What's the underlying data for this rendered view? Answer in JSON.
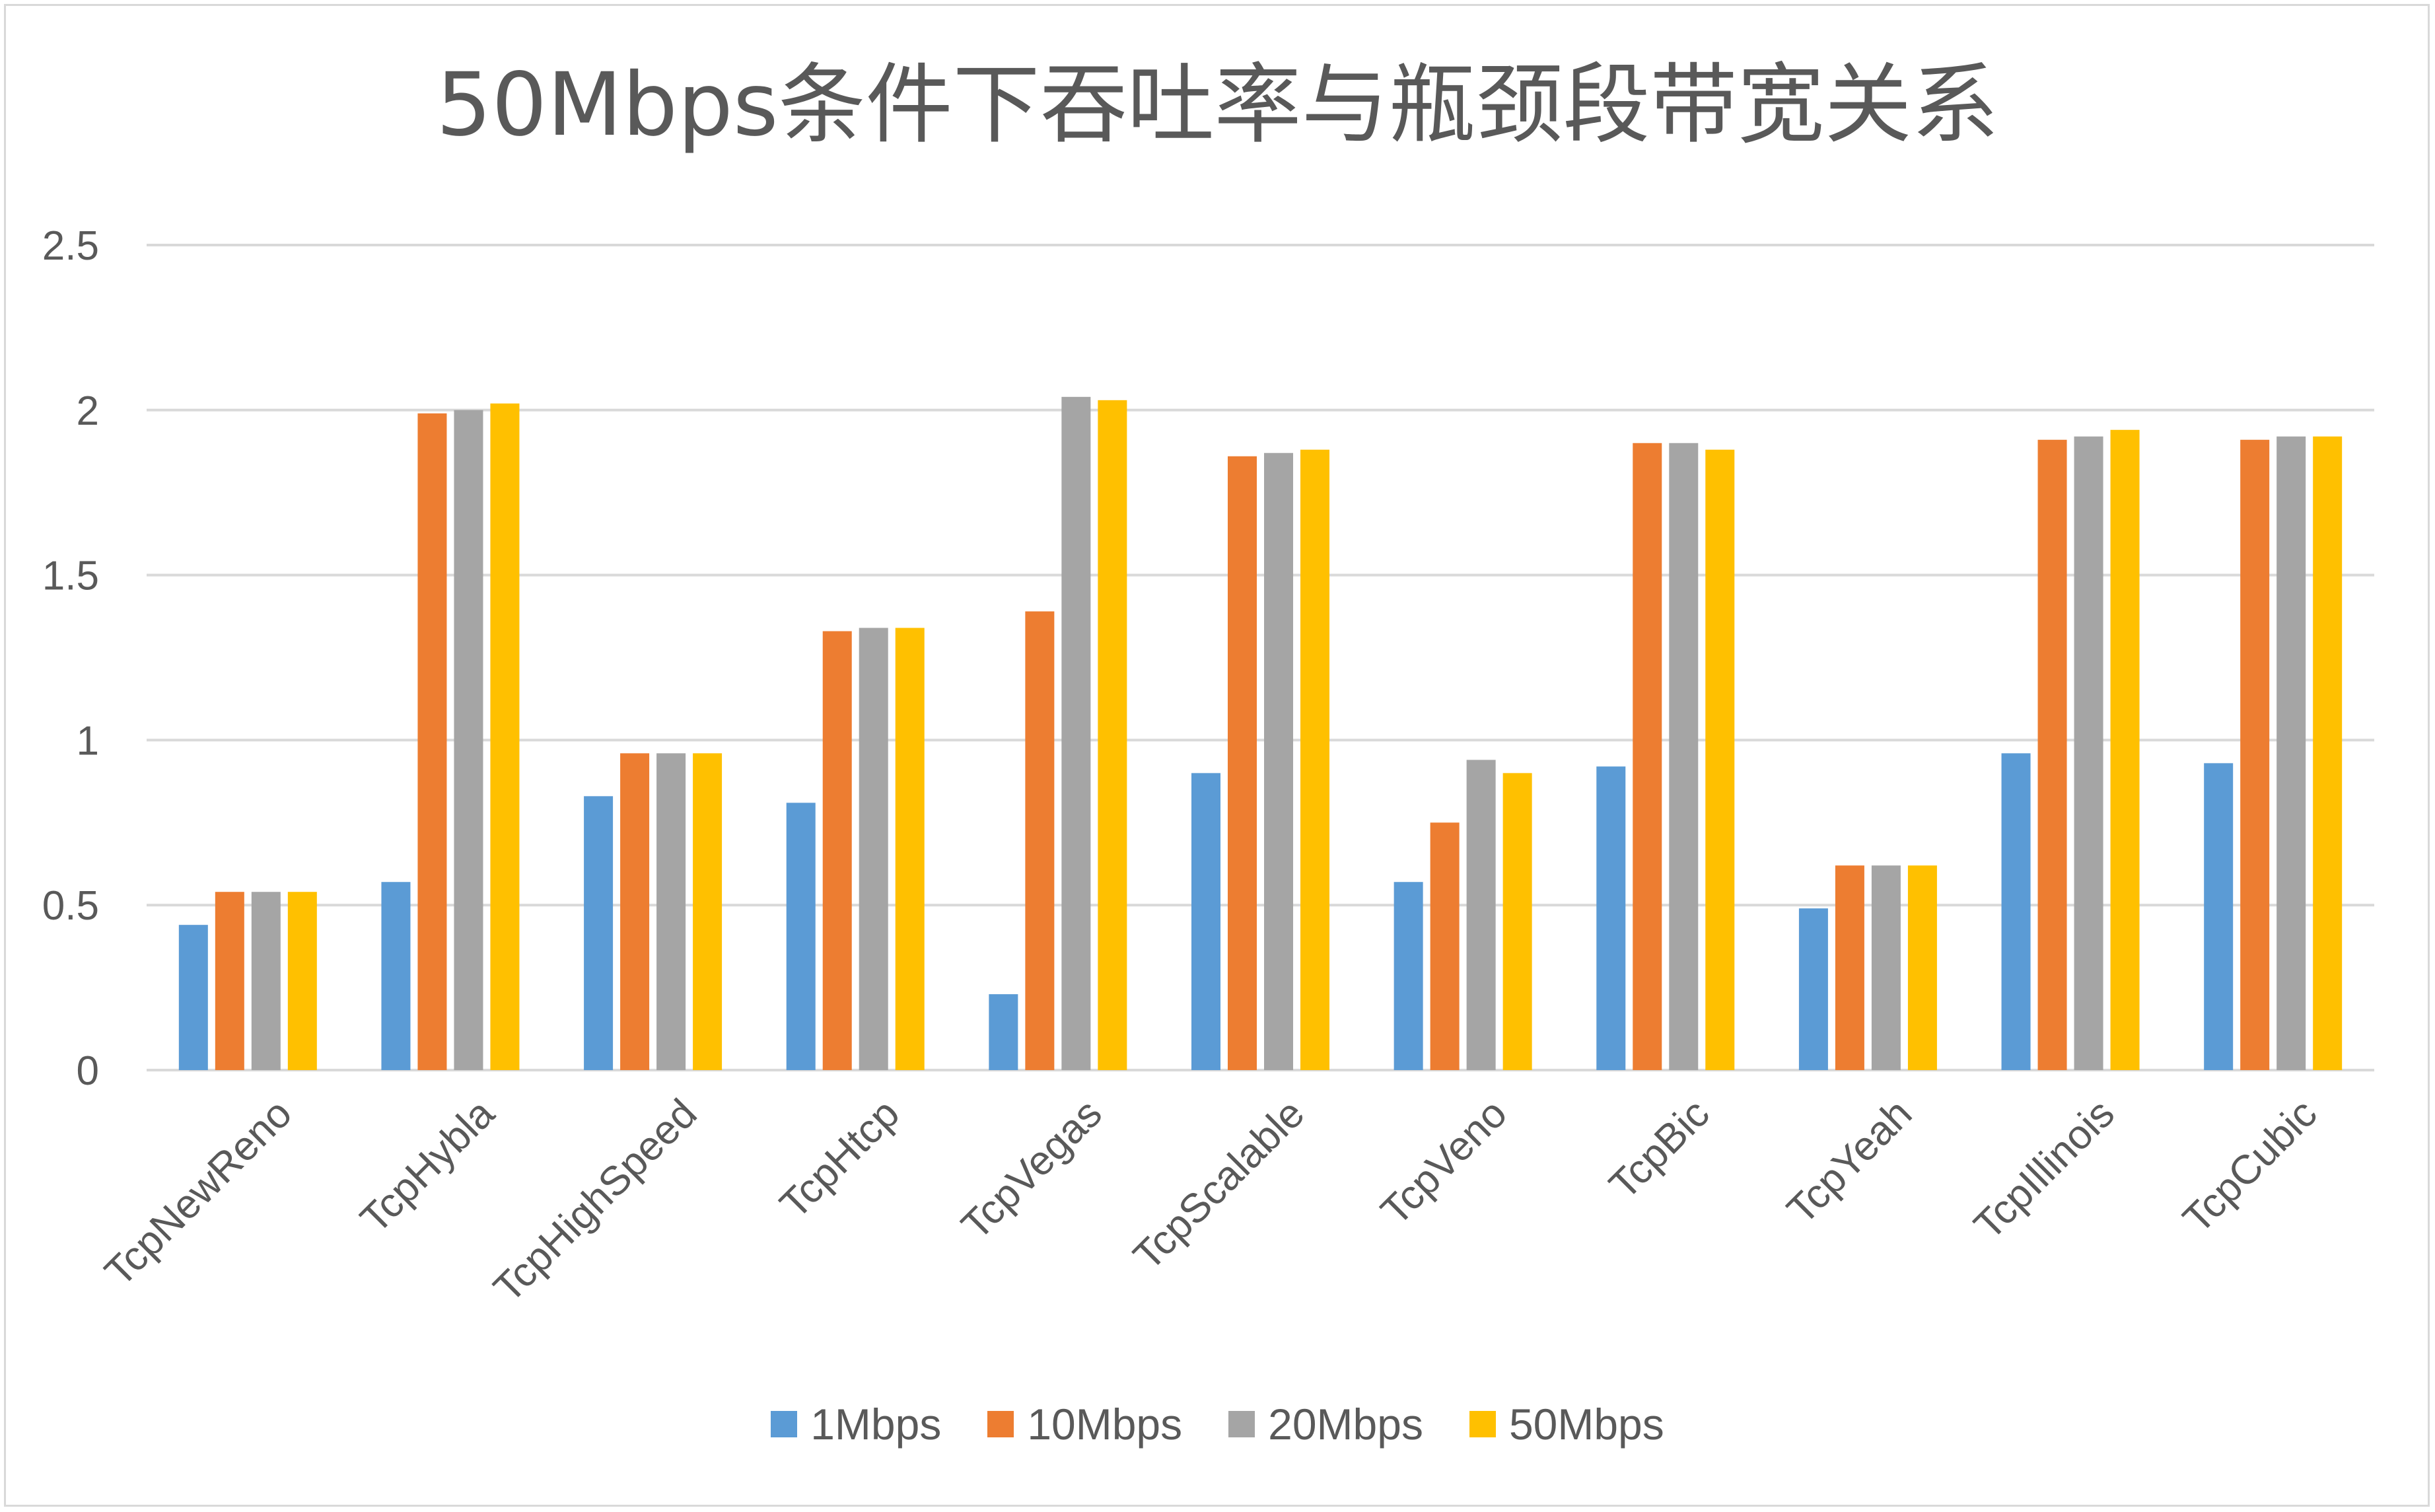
{
  "chart_data": {
    "type": "bar",
    "title": "50Mbps条件下吞吐率与瓶颈段带宽关系",
    "categories": [
      "TcpNewReno",
      "TcpHybla",
      "TcpHighSpeed",
      "TcpHtcp",
      "TcpVegas",
      "TcpScalable",
      "TcpVeno",
      "TcpBic",
      "TcpYeah",
      "TcpIllinois",
      "TcpCubic"
    ],
    "series": [
      {
        "name": "1Mbps",
        "color": "#5b9bd5",
        "values": [
          0.44,
          0.57,
          0.83,
          0.81,
          0.23,
          0.9,
          0.57,
          0.92,
          0.49,
          0.96,
          0.93
        ]
      },
      {
        "name": "10Mbps",
        "color": "#ed7d31",
        "values": [
          0.54,
          1.99,
          0.96,
          1.33,
          1.39,
          1.86,
          0.75,
          1.9,
          0.62,
          1.91,
          1.91
        ]
      },
      {
        "name": "20Mbps",
        "color": "#a5a5a5",
        "values": [
          0.54,
          2.0,
          0.96,
          1.34,
          2.04,
          1.87,
          0.94,
          1.9,
          0.62,
          1.92,
          1.92
        ]
      },
      {
        "name": "50Mbps",
        "color": "#ffc000",
        "values": [
          0.54,
          2.02,
          0.96,
          1.34,
          2.03,
          1.88,
          0.9,
          1.88,
          0.62,
          1.94,
          1.92
        ]
      }
    ],
    "yticks": [
      "0",
      "0.5",
      "1",
      "1.5",
      "2",
      "2.5"
    ],
    "ylim": [
      0,
      2.5
    ],
    "xlabel": "",
    "ylabel": "",
    "grid": true,
    "legend_position": "bottom"
  },
  "colors": {
    "grid": "#d9d9d9",
    "text": "#595959",
    "frame": "#d9d9d9"
  }
}
